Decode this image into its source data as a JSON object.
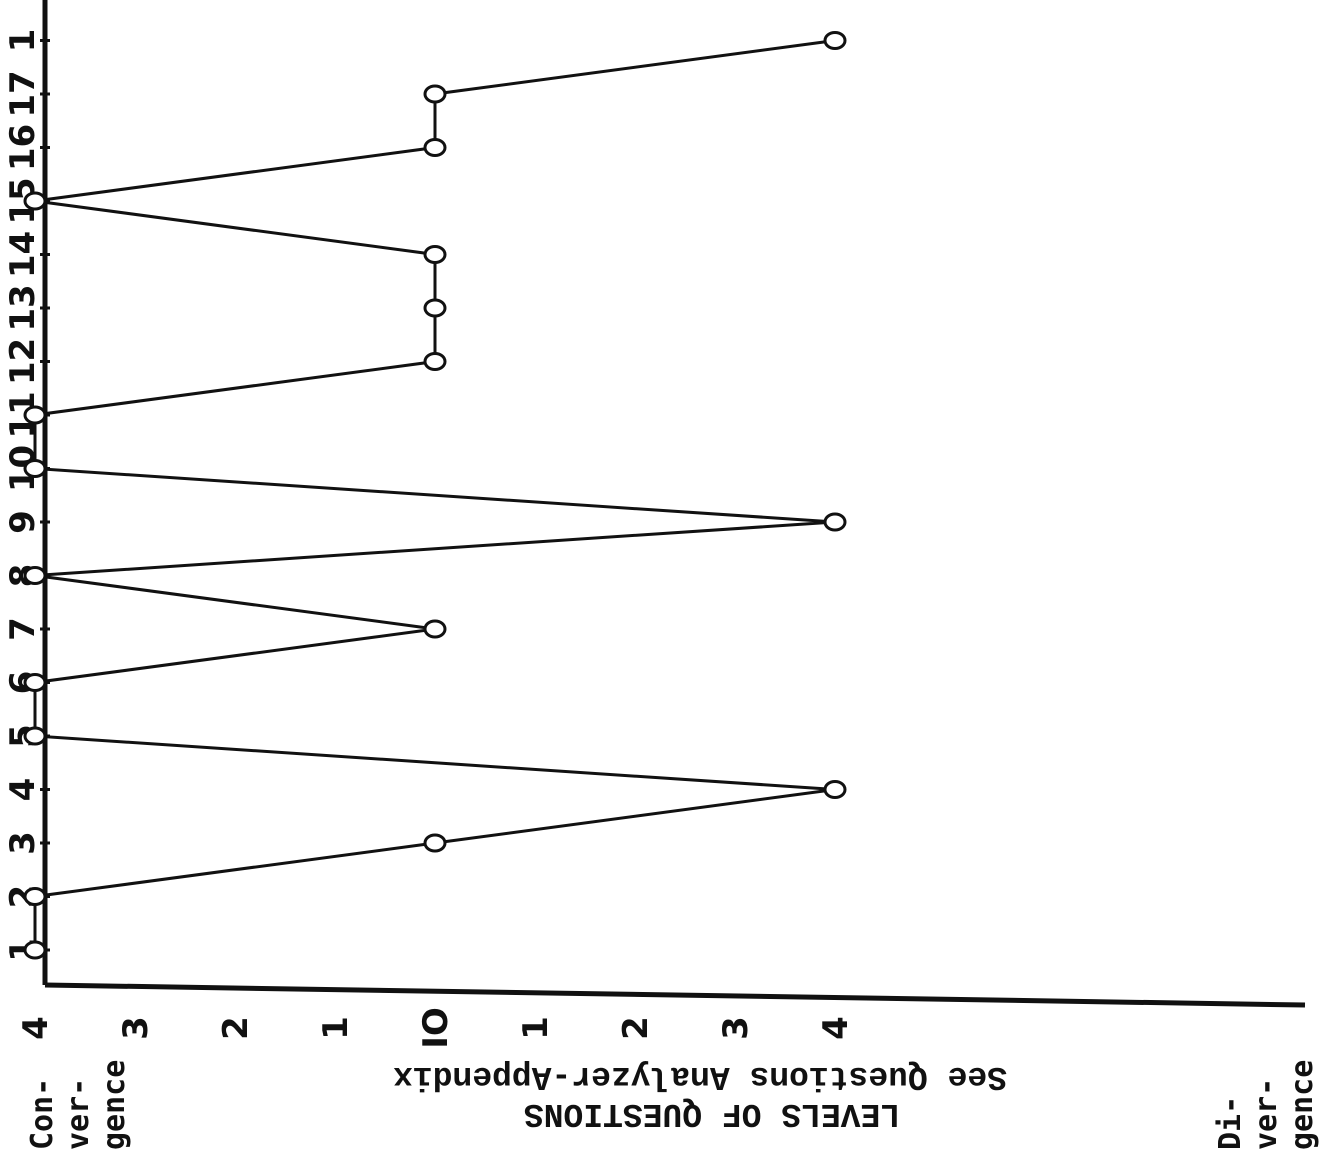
{
  "chart_data": {
    "type": "line",
    "x_axis_label": "",
    "question_numbers": [
      "1",
      "2",
      "3",
      "4",
      "5",
      "6",
      "7",
      "8",
      "9",
      "10",
      "11",
      "12",
      "13",
      "14",
      "15",
      "16",
      "17",
      "1"
    ],
    "level_ticks": [
      "4",
      "3",
      "2",
      "1",
      "IO",
      "1",
      "2",
      "3",
      "4"
    ],
    "level_axis_title": "LEVELS OF QUESTIONS",
    "level_axis_subtitle": "See Questions Analyzer-Appendix",
    "convergence_label": [
      "Con-",
      "ver-",
      "gence"
    ],
    "divergence_label": [
      "Di-",
      "ver-",
      "gence"
    ],
    "level_range": [
      -4,
      4
    ],
    "series": [
      {
        "x": [
          1,
          2,
          3,
          4,
          5,
          6,
          7,
          8,
          9,
          10,
          11,
          12,
          13,
          14,
          15,
          16,
          17,
          18
        ],
        "values": [
          -4,
          -4,
          0,
          4,
          -4,
          -4,
          0,
          -4,
          4,
          -4,
          -4,
          0,
          0,
          0,
          -4,
          0,
          0,
          4
        ]
      }
    ],
    "marker": "open-circle",
    "line_color": "#111111"
  }
}
